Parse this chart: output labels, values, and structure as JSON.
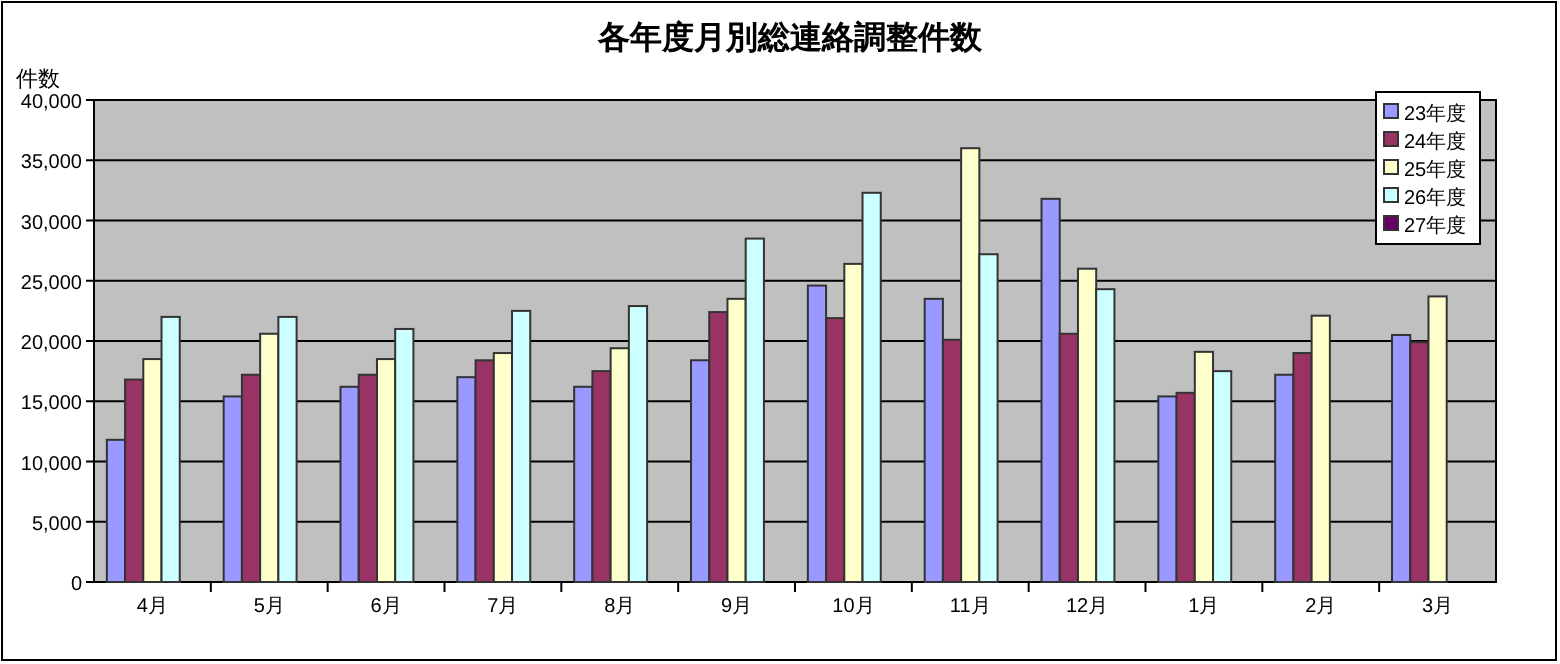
{
  "chart_data": {
    "type": "bar",
    "title": "各年度月別総連絡調整件数",
    "ylabel": "件数",
    "categories": [
      "4月",
      "5月",
      "6月",
      "7月",
      "8月",
      "9月",
      "10月",
      "11月",
      "12月",
      "1月",
      "2月",
      "3月"
    ],
    "series": [
      {
        "name": "23年度",
        "color": "#9999ff",
        "values": [
          11800,
          15400,
          16200,
          17000,
          16200,
          18400,
          24600,
          23500,
          31800,
          15400,
          17200,
          20500
        ]
      },
      {
        "name": "24年度",
        "color": "#993366",
        "values": [
          16800,
          17200,
          17200,
          18400,
          17500,
          22400,
          21900,
          20100,
          20600,
          15700,
          19000,
          19900
        ]
      },
      {
        "name": "25年度",
        "color": "#ffffcc",
        "values": [
          18500,
          20600,
          18500,
          19000,
          19400,
          23500,
          26400,
          36000,
          26000,
          19100,
          22100,
          23700
        ]
      },
      {
        "name": "26年度",
        "color": "#ccffff",
        "values": [
          22000,
          22000,
          21000,
          22500,
          22900,
          28500,
          32300,
          27200,
          24300,
          17500,
          null,
          null
        ]
      },
      {
        "name": "27年度",
        "color": "#660066",
        "values": [
          null,
          null,
          null,
          null,
          null,
          null,
          null,
          null,
          null,
          null,
          null,
          null
        ]
      }
    ],
    "ylim": [
      0,
      40000
    ],
    "yticks": [
      0,
      {
        "value": 5000,
        "label": "5,000"
      },
      {
        "value": 10000,
        "label": "10,000"
      },
      {
        "value": 15000,
        "label": "15,000"
      },
      {
        "value": 20000,
        "label": "20,000"
      },
      {
        "value": 25000,
        "label": "25,000"
      },
      {
        "value": 30000,
        "label": "30,000"
      },
      {
        "value": 35000,
        "label": "35,000"
      },
      {
        "value": 40000,
        "label": "40,000"
      }
    ],
    "grid": "y",
    "legend": "top right"
  }
}
